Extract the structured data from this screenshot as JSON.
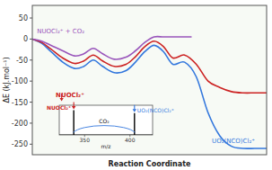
{
  "chart_data": [
    {
      "type": "line",
      "xlabel": "Reaction Coordinate",
      "ylabel": "ΔE (kJ.mol⁻¹)",
      "xlim": [
        0,
        1
      ],
      "ylim": [
        -275,
        80
      ],
      "yticks": [
        50,
        0,
        -50,
        -100,
        -150,
        -200,
        -250
      ],
      "tick_labels": "y",
      "series": [
        {
          "color": "#3377dd",
          "x": [
            0.0,
            0.04,
            0.08,
            0.13,
            0.18,
            0.22,
            0.26,
            0.3,
            0.35,
            0.4,
            0.44,
            0.48,
            0.52,
            0.56,
            0.6,
            0.65,
            0.7,
            0.75,
            0.8,
            0.85,
            0.9,
            0.95,
            1.0
          ],
          "values": [
            0,
            -10,
            -30,
            -55,
            -70,
            -65,
            -50,
            -65,
            -80,
            -75,
            -55,
            -30,
            -15,
            -30,
            -60,
            -55,
            -90,
            -175,
            -230,
            -255,
            -260,
            -260,
            -260
          ]
        },
        {
          "color": "#cc2222",
          "x": [
            0.0,
            0.04,
            0.08,
            0.13,
            0.18,
            0.22,
            0.26,
            0.3,
            0.35,
            0.4,
            0.44,
            0.48,
            0.52,
            0.56,
            0.6,
            0.65,
            0.7,
            0.75,
            0.8,
            0.85,
            0.9,
            0.95,
            1.0
          ],
          "values": [
            0,
            -8,
            -24,
            -45,
            -58,
            -52,
            -38,
            -52,
            -65,
            -60,
            -42,
            -18,
            -5,
            -18,
            -45,
            -38,
            -60,
            -100,
            -115,
            -125,
            -128,
            -128,
            -128
          ]
        },
        {
          "color": "#9955bb",
          "x": [
            0.0,
            0.04,
            0.08,
            0.13,
            0.18,
            0.22,
            0.26,
            0.3,
            0.35,
            0.4,
            0.44,
            0.48,
            0.52,
            0.56,
            0.6,
            0.65,
            0.68
          ],
          "values": [
            0,
            -5,
            -15,
            -28,
            -40,
            -35,
            -22,
            -35,
            -48,
            -43,
            -28,
            -8,
            5,
            5,
            5,
            5,
            5
          ]
        }
      ],
      "annotations": [
        {
          "text": "NUOCl₂⁺ + CO₂",
          "x": 0.02,
          "y": 14,
          "color": "#9955bb"
        },
        {
          "text": "UO₂(NCO)Cl₂⁺",
          "x": 0.95,
          "y": -248,
          "color": "#3377dd"
        },
        {
          "text": "NUOCl₂⁺",
          "x": 0.1,
          "y": -138,
          "color": "#cc2222",
          "arrow": {
            "x": 0.125,
            "y0": -130,
            "y1": -148
          }
        }
      ]
    },
    {
      "type": "stem",
      "xlabel": "m/z",
      "xlim": [
        322,
        425
      ],
      "ylim": [
        0,
        1.2
      ],
      "xticks": [
        350,
        400
      ],
      "tick_labels": "x",
      "x": [
        338,
        405
      ],
      "values": [
        1.0,
        0.88
      ],
      "annotations": [
        {
          "text": "NUOCl₂⁺",
          "x": 338,
          "y": 1.0,
          "color": "#cc2222",
          "arrow": true
        },
        {
          "text": "UO₂(NCO)Cl₂⁺",
          "x": 405,
          "y": 0.88,
          "color": "#3377dd",
          "arrow": true
        },
        {
          "text": "CO₂",
          "x": 371.5,
          "y": 0.42,
          "color": "#000000",
          "arc": true
        }
      ]
    }
  ]
}
